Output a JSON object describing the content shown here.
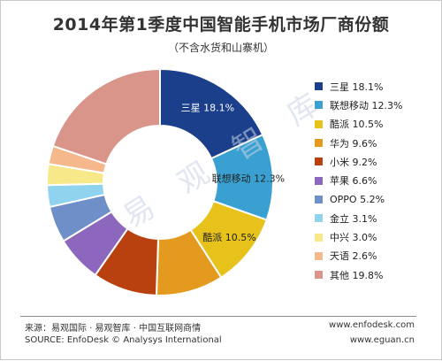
{
  "chart_data": {
    "type": "pie",
    "title": "2014年第1季度中国智能手机市场厂商份额",
    "subtitle": "（不含水货和山寨机）",
    "categories": [
      "三星",
      "联想移动",
      "酷派",
      "华为",
      "小米",
      "苹果",
      "OPPO",
      "金立",
      "中兴",
      "天语",
      "其他"
    ],
    "values": [
      18.1,
      12.3,
      10.5,
      9.6,
      9.2,
      6.6,
      5.2,
      3.1,
      3.0,
      2.6,
      19.8
    ],
    "value_labels": [
      "18.1%",
      "12.3%",
      "10.5%",
      "9.6%",
      "9.2%",
      "6.6%",
      "5.2%",
      "3.1%",
      "3.0%",
      "2.6%",
      "19.8%"
    ],
    "colors": [
      "#1b3f8b",
      "#3aa0d1",
      "#e6c21a",
      "#e39a1e",
      "#b9400f",
      "#8c67bd",
      "#6f8fc9",
      "#8fd3ef",
      "#f7e98a",
      "#f5b88d",
      "#d9958a"
    ],
    "donut": true,
    "legend_position": "right",
    "inner_labels": [
      "三星 18.1%",
      "联想移动 12.3%",
      "酷派 10.5%"
    ],
    "legend": [
      "三星 18.1%",
      "联想移动 12.3%",
      "酷派 10.5%",
      "华为 9.6%",
      "小米 9.2%",
      "苹果 6.6%",
      "OPPO 5.2%",
      "金立 3.1%",
      "中兴 3.0%",
      "天语 2.6%",
      "其他 19.8%"
    ]
  },
  "watermark": "易 观 智 库",
  "footer": {
    "source_cn": "来源：易观国际 · 易观智库 · 中国互联网商情",
    "source_en": "SOURCE: EnfoDesk © Analysys International",
    "url1": "www.enfodesk.com",
    "url2": "www.eguan.cn"
  }
}
